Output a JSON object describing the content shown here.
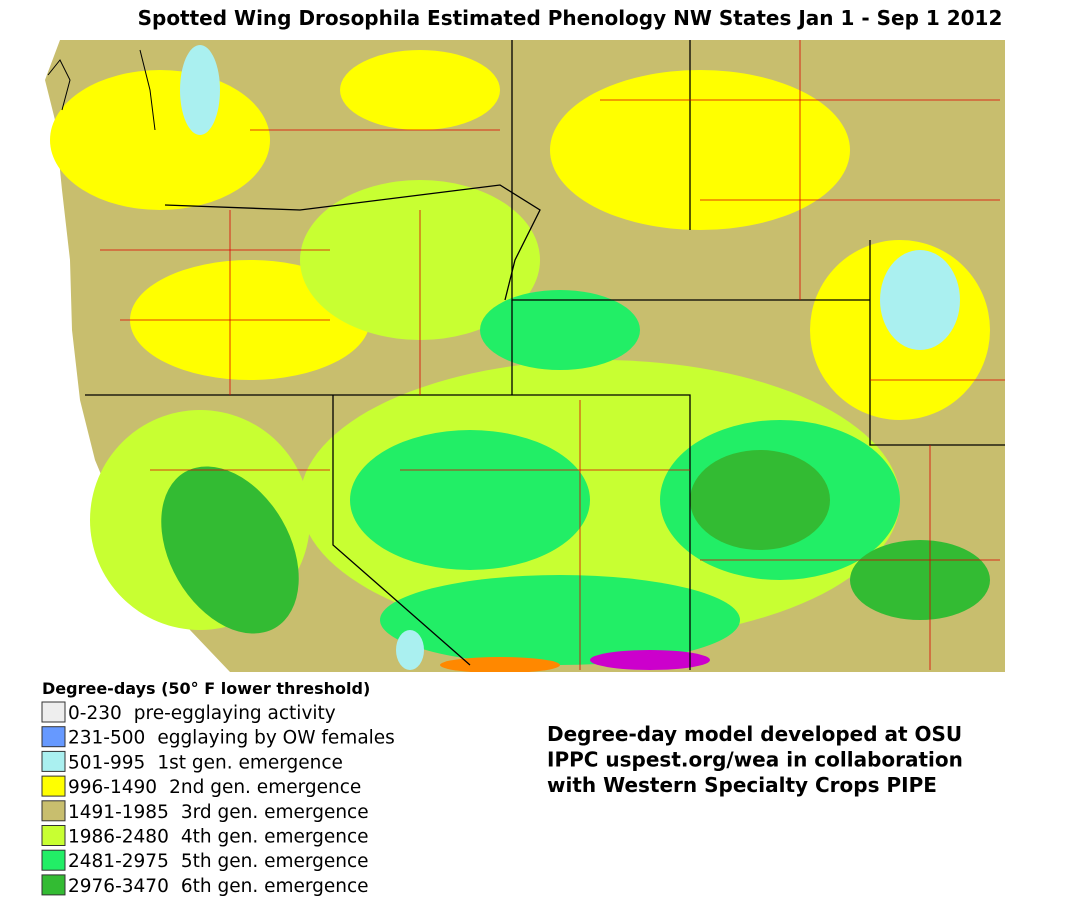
{
  "title": "Spotted Wing Drosophila Estimated Phenology NW States Jan 1 - Sep 1 2012",
  "legend": {
    "title": "Degree-days (50° F lower threshold)",
    "items": [
      {
        "range": "0-230",
        "label": "pre-egglaying activity",
        "color": "#eeeeee"
      },
      {
        "range": "231-500",
        "label": "egglaying by OW females",
        "color": "#6699ff"
      },
      {
        "range": "501-995",
        "label": "1st gen. emergence",
        "color": "#aaf0f0"
      },
      {
        "range": "996-1490",
        "label": "2nd gen. emergence",
        "color": "#ffff00"
      },
      {
        "range": "1491-1985",
        "label": "3rd gen. emergence",
        "color": "#c8be6e"
      },
      {
        "range": "1986-2480",
        "label": "4th gen. emergence",
        "color": "#c8ff32"
      },
      {
        "range": "2481-2975",
        "label": "5th gen. emergence",
        "color": "#22ee66"
      },
      {
        "range": "2976-3470",
        "label": "6th gen. emergence",
        "color": "#33bb33"
      }
    ]
  },
  "credit": [
    "Degree-day model developed at OSU",
    "IPPC uspest.org/wea in collaboration",
    "with Western Specialty Crops PIPE"
  ]
}
